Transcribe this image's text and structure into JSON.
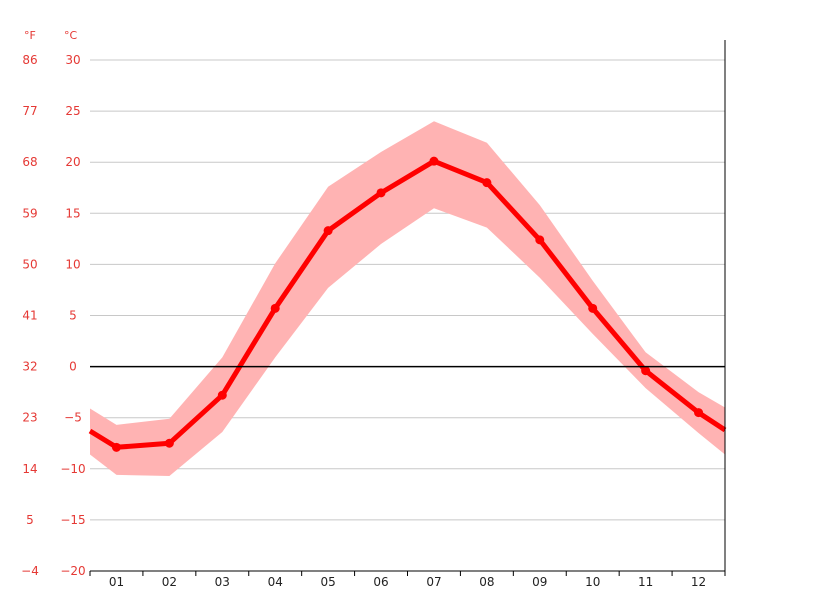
{
  "chart_data": {
    "type": "line",
    "units": {
      "fahrenheit": "°F",
      "celsius": "°C"
    },
    "categories": [
      "01",
      "02",
      "03",
      "04",
      "05",
      "06",
      "07",
      "08",
      "09",
      "10",
      "11",
      "12"
    ],
    "y_ticks_celsius": [
      "30",
      "25",
      "20",
      "15",
      "10",
      "5",
      "0",
      "-5",
      "-10",
      "-15",
      "-20"
    ],
    "y_ticks_fahrenheit": [
      "86",
      "77",
      "68",
      "59",
      "50",
      "41",
      "32",
      "23",
      "14",
      "5",
      "-4"
    ],
    "ylim": [
      -20,
      30
    ],
    "grid": true,
    "zero_line": true,
    "series": [
      {
        "type": "line",
        "values": [
          -7.9,
          -7.5,
          -2.8,
          5.7,
          13.3,
          17.0,
          20.1,
          18.0,
          12.4,
          5.7,
          -0.4,
          -4.5
        ],
        "left_edge_value": -6.3,
        "right_edge_value": -6.2
      },
      {
        "type": "range",
        "max": [
          -5.7,
          -5.1,
          0.9,
          10.1,
          17.6,
          21.0,
          24.0,
          21.9,
          15.8,
          8.4,
          1.4,
          -2.5
        ],
        "min": [
          -10.6,
          -10.7,
          -6.4,
          0.9,
          7.7,
          12.0,
          15.5,
          13.6,
          8.7,
          3.2,
          -2.1,
          -6.5
        ],
        "left_edge_max": -4.1,
        "left_edge_min": -8.6,
        "right_edge_max": -4.0,
        "right_edge_min": -8.6
      }
    ],
    "colors": {
      "line": "#ff0000",
      "band": "#ffb3b3",
      "tick_labels": "#e53935",
      "grid": "#c8c8c8",
      "axis": "#000000"
    }
  }
}
